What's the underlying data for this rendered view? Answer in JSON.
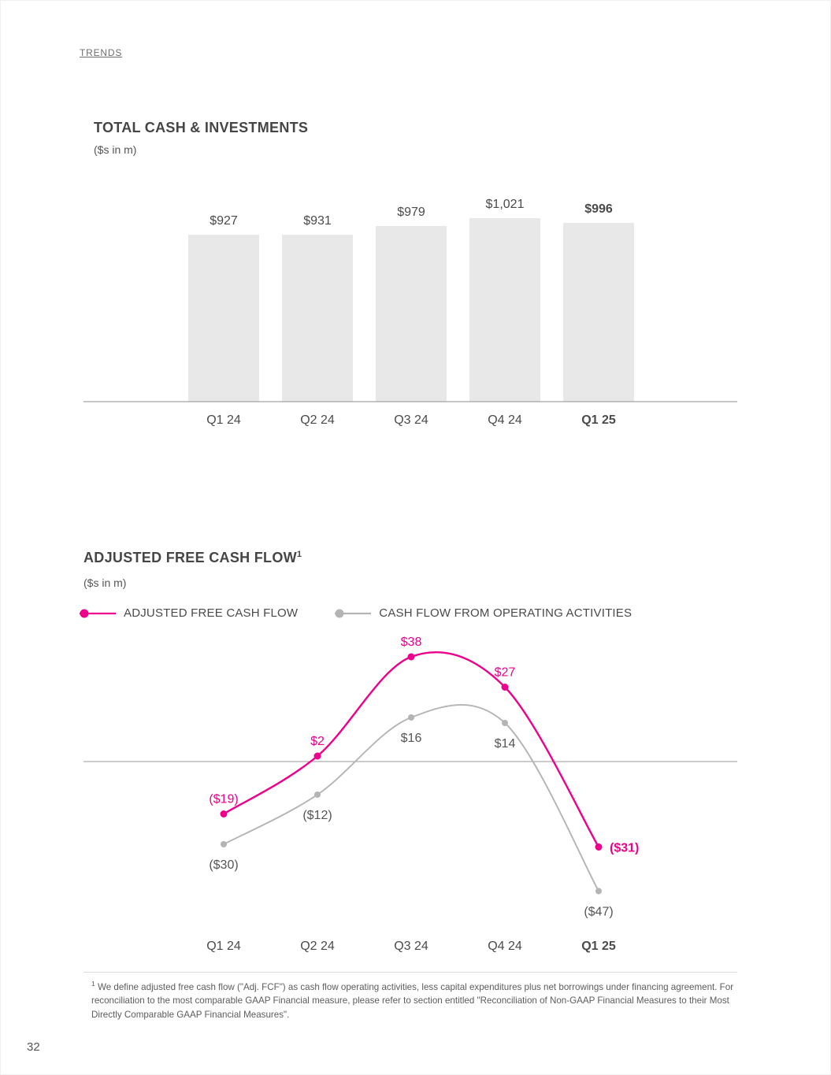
{
  "page": {
    "section_label": "TRENDS",
    "page_number": "32"
  },
  "colors": {
    "accent_pink": "#EC008C",
    "line_gray": "#b4b4b4",
    "bar_fill": "#e8e8e8",
    "axis": "#8f8f8f",
    "text_dark": "#4a4a4a",
    "gray_label": "#555555"
  },
  "chart_data": [
    {
      "type": "bar",
      "title": "TOTAL CASH & INVESTMENTS",
      "units": "($s in m)",
      "categories": [
        "Q1 24",
        "Q2 24",
        "Q3 24",
        "Q4 24",
        "Q1 25"
      ],
      "values": [
        927,
        931,
        979,
        1021,
        996
      ],
      "value_labels": [
        "$927",
        "$931",
        "$979",
        "$1,021",
        "$996"
      ],
      "highlight_index": 4,
      "ylim": [
        0,
        1100
      ],
      "grid": false,
      "xlabel": "",
      "ylabel": ""
    },
    {
      "type": "line",
      "title": "ADJUSTED FREE CASH FLOW",
      "title_superscript": "1",
      "units": "($s in m)",
      "categories": [
        "Q1 24",
        "Q2 24",
        "Q3 24",
        "Q4 24",
        "Q1 25"
      ],
      "series": [
        {
          "name": "ADJUSTED FREE CASH FLOW",
          "color": "#EC008C",
          "label_color": "#EC008C",
          "values": [
            -19,
            2,
            38,
            27,
            -31
          ],
          "value_labels": [
            "($19)",
            "$2",
            "$38",
            "$27",
            "($31)"
          ],
          "label_placement": [
            "top",
            "top",
            "top",
            "top",
            "right"
          ]
        },
        {
          "name": "CASH FLOW FROM OPERATING ACTIVITIES",
          "color": "#b4b4b4",
          "label_color": "#555555",
          "values": [
            -30,
            -12,
            16,
            14,
            -47
          ],
          "value_labels": [
            "($30)",
            "($12)",
            "$16",
            "$14",
            "($47)"
          ],
          "label_placement": [
            "bottom",
            "bottom",
            "bottom",
            "bottom",
            "bottom"
          ]
        }
      ],
      "highlight_index": 4,
      "legend_position": "top",
      "zero_line": true,
      "ylim": [
        -55,
        45
      ],
      "grid": false
    }
  ],
  "footnote": {
    "marker": "1",
    "text": "We define adjusted free cash flow (\"Adj. FCF\") as cash flow operating activities, less capital expenditures plus net borrowings under financing agreement. For reconciliation to the most comparable GAAP Financial measure, please refer to section entitled \"Reconciliation of Non-GAAP Financial Measures to their Most Directly Comparable GAAP Financial Measures\"."
  }
}
